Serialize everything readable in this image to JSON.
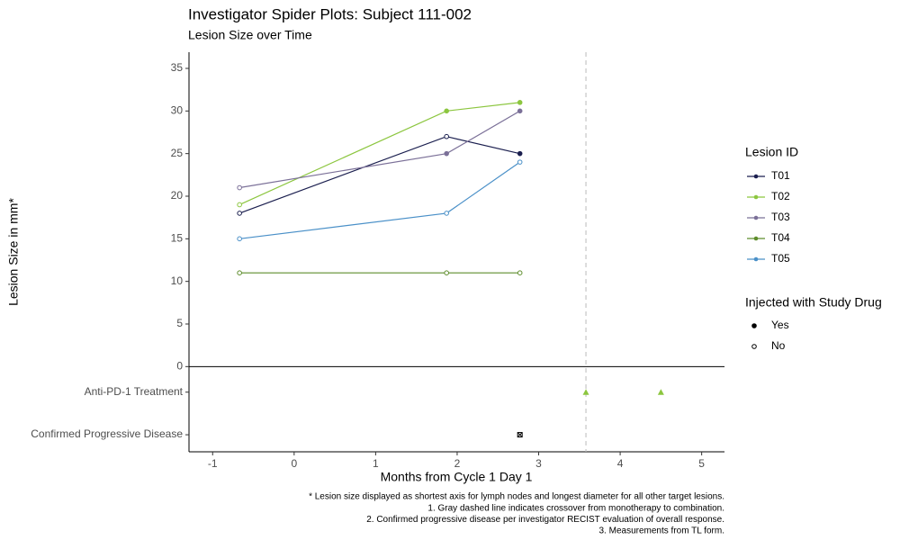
{
  "chart_data": {
    "type": "line",
    "title": "Investigator Spider Plots: Subject 111-002",
    "subtitle": "Lesion Size over Time",
    "xlabel": "Months from Cycle 1 Day 1",
    "ylabel": "Lesion Size in mm*",
    "x": [
      -0.67,
      1.87,
      2.77
    ],
    "series": [
      {
        "name": "T01",
        "color": "#1b1f4f",
        "values": [
          18,
          27,
          25
        ],
        "filled": [
          false,
          false,
          true
        ]
      },
      {
        "name": "T02",
        "color": "#8cc63f",
        "values": [
          19,
          30,
          31
        ],
        "filled": [
          false,
          true,
          true
        ]
      },
      {
        "name": "T03",
        "color": "#7b7098",
        "values": [
          21,
          25,
          30
        ],
        "filled": [
          false,
          true,
          true
        ]
      },
      {
        "name": "T04",
        "color": "#5e8d2c",
        "values": [
          11,
          11,
          11
        ],
        "filled": [
          false,
          false,
          false
        ]
      },
      {
        "name": "T05",
        "color": "#4a90c8",
        "values": [
          15,
          18,
          24
        ],
        "filled": [
          false,
          false,
          false
        ]
      }
    ],
    "event_rows": [
      {
        "label": "Anti-PD-1 Treatment",
        "y": -3,
        "x": [
          3.58,
          4.5
        ],
        "shape": "triangle",
        "color": "#8cc63f"
      },
      {
        "label": "Confirmed Progressive Disease",
        "y": -8,
        "x": [
          2.77
        ],
        "shape": "box",
        "color": "#000000"
      }
    ],
    "legend_title": "Lesion ID",
    "shape_legend": {
      "title": "Injected with Study Drug",
      "labels": [
        "Yes",
        "No"
      ]
    },
    "vline": 3.58,
    "hline": 0,
    "xlim": [
      -1.29,
      5.28
    ],
    "ylim": [
      -10,
      36.9
    ],
    "xticks": [
      -1,
      0,
      1,
      2,
      3,
      4,
      5
    ],
    "yticks": [
      0,
      5,
      10,
      15,
      20,
      25,
      30,
      35
    ],
    "footnotes": [
      "* Lesion size displayed as shortest axis for lymph nodes and longest diameter for all other target lesions.",
      "1. Gray dashed line indicates crossover from monotherapy to combination.",
      "2. Confirmed progressive disease per investigator RECIST evaluation of overall response.",
      "3. Measurements from TL form."
    ]
  }
}
